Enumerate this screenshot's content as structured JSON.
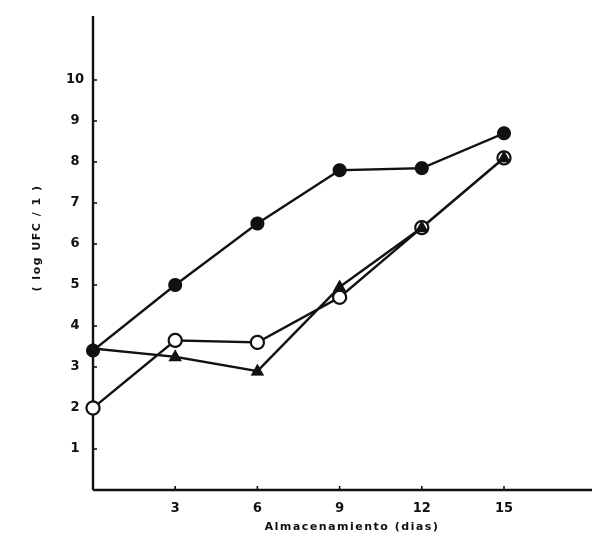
{
  "chart_data": {
    "type": "line",
    "title": "",
    "xlabel": "Almacenamiento (dias)",
    "ylabel": "( log UFC / 1 )",
    "x": [
      0,
      3,
      6,
      9,
      12,
      15
    ],
    "x_tick_labels": [
      "3",
      "6",
      "9",
      "12",
      "15"
    ],
    "x_ticks": [
      3,
      6,
      9,
      12,
      15
    ],
    "y_tick_labels": [
      "1",
      "2",
      "3",
      "4",
      "5",
      "6",
      "7",
      "8",
      "9",
      "10"
    ],
    "y_ticks": [
      1,
      2,
      3,
      4,
      5,
      6,
      7,
      8,
      9,
      10
    ],
    "xlim": [
      0,
      18
    ],
    "ylim": [
      0,
      11
    ],
    "grid": false,
    "legend": null,
    "series": [
      {
        "name": "filled-circle",
        "marker": "filled-circle",
        "values": [
          3.4,
          5.0,
          6.5,
          7.8,
          7.85,
          8.7
        ]
      },
      {
        "name": "open-circle",
        "marker": "open-circle",
        "values": [
          2.0,
          3.65,
          3.6,
          4.7,
          6.4,
          8.1
        ]
      },
      {
        "name": "filled-triangle",
        "marker": "filled-triangle",
        "values": [
          3.45,
          3.25,
          2.9,
          4.95,
          6.4,
          8.1
        ]
      }
    ]
  },
  "colors": {
    "ink": "#111111",
    "background": "#ffffff"
  }
}
